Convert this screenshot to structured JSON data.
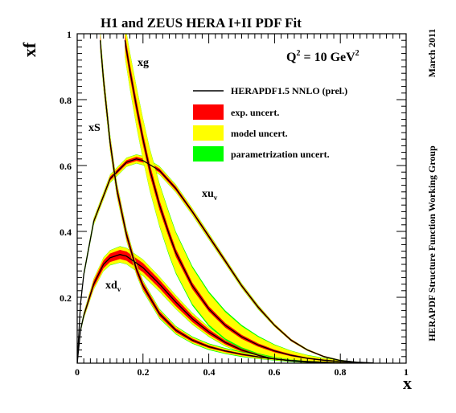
{
  "chart_data": {
    "type": "line",
    "title": "H1 and ZEUS HERA I+II PDF Fit",
    "xlabel": "x",
    "ylabel": "xf",
    "xlim": [
      0,
      1
    ],
    "ylim": [
      0,
      1
    ],
    "x_ticks": [
      "0",
      "0.2",
      "0.4",
      "0.6",
      "0.8",
      "1"
    ],
    "y_ticks": [
      "0.2",
      "0.4",
      "0.6",
      "0.8",
      "1"
    ],
    "annotation_q2": {
      "base": "Q",
      "exp": "2",
      "rest": " = 10 GeV",
      "exp2": "2"
    },
    "date_label": "March 2011",
    "group_label": "HERAPDF Structure Function Working Group",
    "legend": {
      "position": "top-right",
      "entries": [
        {
          "label": "HERAPDF1.5 NNLO (prel.)",
          "kind": "line",
          "color": "#000000"
        },
        {
          "label": "exp. uncert.",
          "kind": "band",
          "color": "#ff0000"
        },
        {
          "label": "model uncert.",
          "kind": "band",
          "color": "#ffff00"
        },
        {
          "label": "parametrization uncert.",
          "kind": "band",
          "color": "#00ff00"
        }
      ]
    },
    "series": [
      {
        "name": "xu_v",
        "label_main": "xu",
        "label_sub": "v",
        "x": [
          0.0,
          0.01,
          0.02,
          0.05,
          0.1,
          0.15,
          0.18,
          0.2,
          0.25,
          0.3,
          0.35,
          0.4,
          0.45,
          0.5,
          0.55,
          0.6,
          0.65,
          0.7,
          0.75,
          0.8,
          0.85,
          0.9
        ],
        "y": [
          0.0,
          0.18,
          0.27,
          0.43,
          0.56,
          0.61,
          0.62,
          0.615,
          0.585,
          0.53,
          0.46,
          0.385,
          0.31,
          0.235,
          0.17,
          0.115,
          0.07,
          0.04,
          0.02,
          0.008,
          0.003,
          0.001
        ],
        "exp": [
          0.0,
          0.003,
          0.004,
          0.005,
          0.006,
          0.006,
          0.006,
          0.006,
          0.006,
          0.006,
          0.005,
          0.005,
          0.005,
          0.004,
          0.004,
          0.003,
          0.003,
          0.002,
          0.002,
          0.001,
          0.001,
          0.0
        ],
        "model": [
          0.0,
          0.006,
          0.008,
          0.01,
          0.012,
          0.013,
          0.013,
          0.013,
          0.012,
          0.011,
          0.01,
          0.009,
          0.008,
          0.007,
          0.006,
          0.005,
          0.004,
          0.003,
          0.002,
          0.002,
          0.001,
          0.0
        ],
        "param": [
          0.0,
          0.007,
          0.009,
          0.011,
          0.013,
          0.014,
          0.014,
          0.014,
          0.013,
          0.012,
          0.011,
          0.01,
          0.009,
          0.008,
          0.007,
          0.005,
          0.004,
          0.003,
          0.002,
          0.002,
          0.001,
          0.0
        ]
      },
      {
        "name": "xd_v",
        "label_main": "xd",
        "label_sub": "v",
        "x": [
          0.0,
          0.01,
          0.02,
          0.05,
          0.08,
          0.1,
          0.13,
          0.15,
          0.2,
          0.25,
          0.3,
          0.35,
          0.4,
          0.45,
          0.5,
          0.55,
          0.6,
          0.65,
          0.7,
          0.75,
          0.8
        ],
        "y": [
          0.0,
          0.1,
          0.145,
          0.24,
          0.3,
          0.32,
          0.33,
          0.325,
          0.29,
          0.24,
          0.185,
          0.135,
          0.095,
          0.063,
          0.04,
          0.024,
          0.013,
          0.007,
          0.003,
          0.001,
          0.0
        ],
        "exp": [
          0.0,
          0.004,
          0.006,
          0.01,
          0.012,
          0.013,
          0.014,
          0.014,
          0.014,
          0.013,
          0.012,
          0.01,
          0.008,
          0.006,
          0.005,
          0.003,
          0.002,
          0.001,
          0.001,
          0.0,
          0.0
        ],
        "model": [
          0.0,
          0.006,
          0.009,
          0.016,
          0.02,
          0.022,
          0.024,
          0.024,
          0.024,
          0.022,
          0.02,
          0.017,
          0.014,
          0.011,
          0.008,
          0.006,
          0.004,
          0.003,
          0.002,
          0.001,
          0.0
        ],
        "param": [
          0.0,
          0.007,
          0.01,
          0.017,
          0.021,
          0.023,
          0.025,
          0.025,
          0.025,
          0.023,
          0.021,
          0.018,
          0.015,
          0.012,
          0.009,
          0.006,
          0.004,
          0.003,
          0.002,
          0.001,
          0.0
        ]
      },
      {
        "name": "xS",
        "label_main": "xS",
        "label_sub": "",
        "x": [
          0.07,
          0.08,
          0.1,
          0.12,
          0.15,
          0.18,
          0.2,
          0.25,
          0.3,
          0.35,
          0.4,
          0.45,
          0.5,
          0.55,
          0.6,
          0.65,
          0.7,
          0.75,
          0.8,
          0.85
        ],
        "y": [
          0.98,
          0.86,
          0.67,
          0.53,
          0.39,
          0.285,
          0.235,
          0.15,
          0.1,
          0.07,
          0.05,
          0.037,
          0.027,
          0.019,
          0.013,
          0.008,
          0.005,
          0.003,
          0.001,
          0.0
        ],
        "exp": [
          0.02,
          0.018,
          0.016,
          0.014,
          0.012,
          0.011,
          0.01,
          0.008,
          0.006,
          0.005,
          0.004,
          0.003,
          0.003,
          0.002,
          0.002,
          0.001,
          0.001,
          0.001,
          0.0,
          0.0
        ],
        "model": [
          0.03,
          0.028,
          0.024,
          0.021,
          0.018,
          0.016,
          0.015,
          0.013,
          0.011,
          0.009,
          0.008,
          0.007,
          0.006,
          0.005,
          0.004,
          0.003,
          0.002,
          0.002,
          0.001,
          0.0
        ],
        "param": [
          0.032,
          0.03,
          0.026,
          0.023,
          0.02,
          0.018,
          0.017,
          0.015,
          0.013,
          0.011,
          0.01,
          0.009,
          0.008,
          0.006,
          0.005,
          0.004,
          0.003,
          0.002,
          0.001,
          0.0
        ]
      },
      {
        "name": "xg",
        "label_main": "xg",
        "label_sub": "",
        "x": [
          0.145,
          0.16,
          0.18,
          0.2,
          0.22,
          0.25,
          0.28,
          0.3,
          0.35,
          0.4,
          0.45,
          0.5,
          0.55,
          0.6,
          0.65,
          0.7,
          0.75,
          0.8,
          0.85,
          0.9
        ],
        "y": [
          0.98,
          0.89,
          0.78,
          0.68,
          0.59,
          0.48,
          0.39,
          0.335,
          0.235,
          0.165,
          0.115,
          0.08,
          0.055,
          0.037,
          0.024,
          0.015,
          0.009,
          0.005,
          0.002,
          0.0
        ],
        "exp": [
          0.02,
          0.02,
          0.02,
          0.018,
          0.017,
          0.015,
          0.013,
          0.012,
          0.01,
          0.008,
          0.007,
          0.006,
          0.005,
          0.004,
          0.003,
          0.002,
          0.002,
          0.001,
          0.001,
          0.0
        ],
        "model": [
          0.05,
          0.055,
          0.06,
          0.062,
          0.063,
          0.063,
          0.062,
          0.06,
          0.055,
          0.048,
          0.04,
          0.032,
          0.025,
          0.018,
          0.013,
          0.009,
          0.006,
          0.004,
          0.002,
          0.0
        ],
        "param": [
          0.052,
          0.057,
          0.062,
          0.064,
          0.065,
          0.066,
          0.066,
          0.064,
          0.06,
          0.053,
          0.045,
          0.036,
          0.028,
          0.02,
          0.014,
          0.01,
          0.007,
          0.004,
          0.002,
          0.0
        ]
      }
    ]
  }
}
